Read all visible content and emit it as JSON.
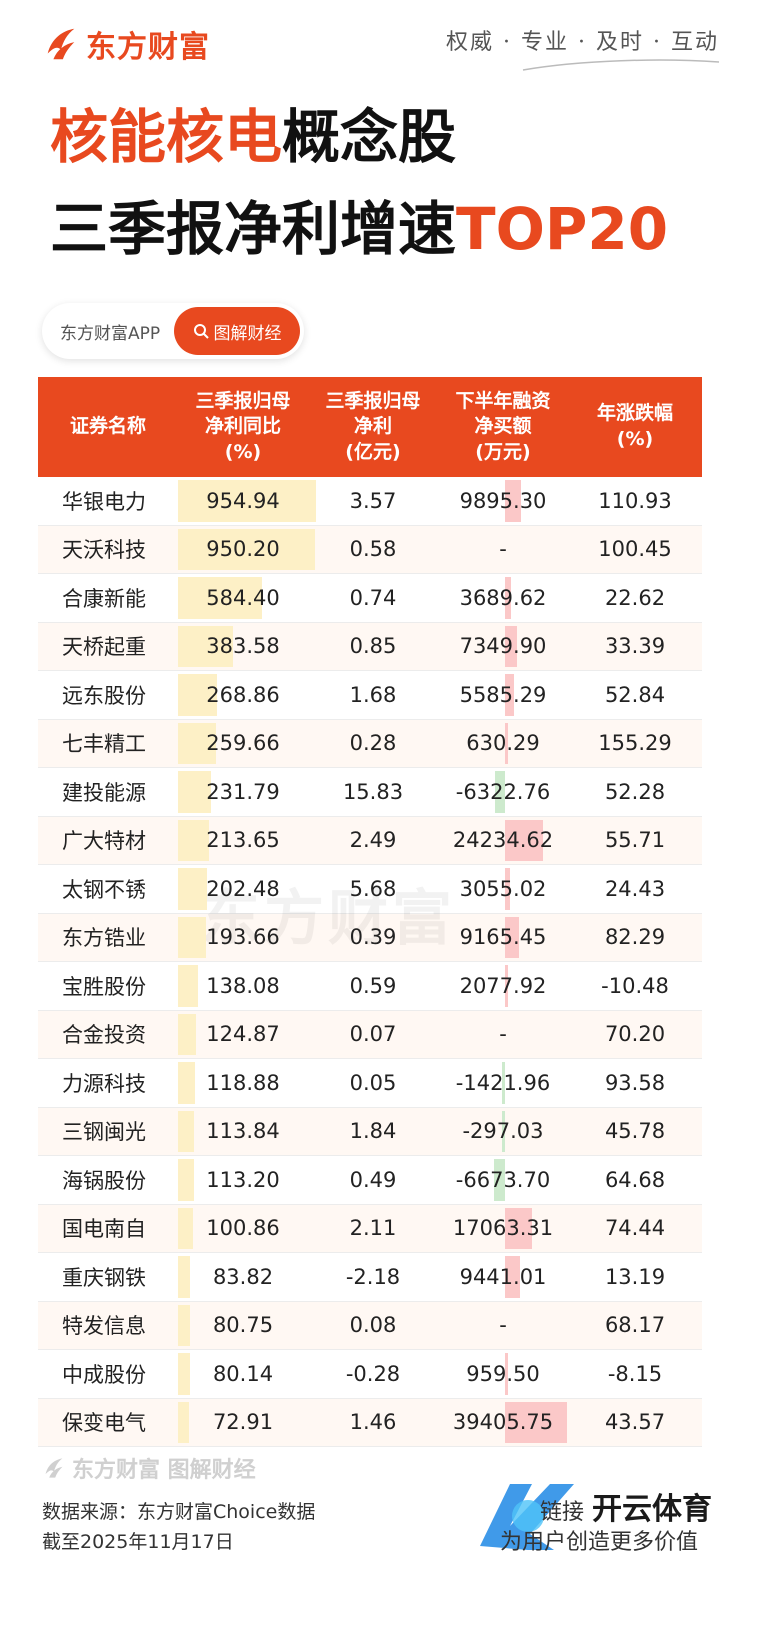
{
  "header": {
    "brand": "东方财富",
    "slogan": "权威 · 专业 · 及时 · 互动",
    "title_line1_highlight": "核能核电",
    "title_line1_rest": "概念股",
    "title_line2_main": "三季报净利增速",
    "title_line2_highlight": "TOP20"
  },
  "pill": {
    "left_label": "东方财富APP",
    "right_label": "图解财经"
  },
  "colors": {
    "accent": "#e8491f",
    "bar_yellow": "#fdf0c6",
    "bar_red": "#fbc8c8",
    "bar_green": "#cdeacd"
  },
  "icons": {
    "logo": "eastmoney-flame-icon",
    "search": "search-icon"
  },
  "chart_data": {
    "type": "table",
    "columns": [
      "证券名称",
      "三季报归母\n净利同比\n(%)",
      "三季报归母\n净利\n(亿元)",
      "下半年融资\n净买额\n(万元)",
      "年涨跌幅\n(%)"
    ],
    "rows": [
      {
        "name": "华银电力",
        "yoy": "954.94",
        "profit": "3.57",
        "margin": "9895.30",
        "change": "110.93"
      },
      {
        "name": "天沃科技",
        "yoy": "950.20",
        "profit": "0.58",
        "margin": "-",
        "change": "100.45"
      },
      {
        "name": "合康新能",
        "yoy": "584.40",
        "profit": "0.74",
        "margin": "3689.62",
        "change": "22.62"
      },
      {
        "name": "天桥起重",
        "yoy": "383.58",
        "profit": "0.85",
        "margin": "7349.90",
        "change": "33.39"
      },
      {
        "name": "远东股份",
        "yoy": "268.86",
        "profit": "1.68",
        "margin": "5585.29",
        "change": "52.84"
      },
      {
        "name": "七丰精工",
        "yoy": "259.66",
        "profit": "0.28",
        "margin": "630.29",
        "change": "155.29"
      },
      {
        "name": "建投能源",
        "yoy": "231.79",
        "profit": "15.83",
        "margin": "-6322.76",
        "change": "52.28"
      },
      {
        "name": "广大特材",
        "yoy": "213.65",
        "profit": "2.49",
        "margin": "24234.62",
        "change": "55.71"
      },
      {
        "name": "太钢不锈",
        "yoy": "202.48",
        "profit": "5.68",
        "margin": "3055.02",
        "change": "24.43"
      },
      {
        "name": "东方锆业",
        "yoy": "193.66",
        "profit": "0.39",
        "margin": "9165.45",
        "change": "82.29"
      },
      {
        "name": "宝胜股份",
        "yoy": "138.08",
        "profit": "0.59",
        "margin": "2077.92",
        "change": "-10.48"
      },
      {
        "name": "合金投资",
        "yoy": "124.87",
        "profit": "0.07",
        "margin": "-",
        "change": "70.20"
      },
      {
        "name": "力源科技",
        "yoy": "118.88",
        "profit": "0.05",
        "margin": "-1421.96",
        "change": "93.58"
      },
      {
        "name": "三钢闽光",
        "yoy": "113.84",
        "profit": "1.84",
        "margin": "-297.03",
        "change": "45.78"
      },
      {
        "name": "海锅股份",
        "yoy": "113.20",
        "profit": "0.49",
        "margin": "-6673.70",
        "change": "64.68"
      },
      {
        "name": "国电南自",
        "yoy": "100.86",
        "profit": "2.11",
        "margin": "17063.31",
        "change": "74.44"
      },
      {
        "name": "重庆钢铁",
        "yoy": "83.82",
        "profit": "-2.18",
        "margin": "9441.01",
        "change": "13.19"
      },
      {
        "name": "特发信息",
        "yoy": "80.75",
        "profit": "0.08",
        "margin": "-",
        "change": "68.17"
      },
      {
        "name": "中成股份",
        "yoy": "80.14",
        "profit": "-0.28",
        "margin": "959.50",
        "change": "-8.15"
      },
      {
        "name": "保变电气",
        "yoy": "72.91",
        "profit": "1.46",
        "margin": "39405.75",
        "change": "43.57"
      }
    ]
  },
  "watermark": "东方财富",
  "footer": {
    "brand": "东方财富 图解财经",
    "source": "数据来源：东方财富Choice数据",
    "date": "截至2025年11月17日"
  },
  "overlay": {
    "brand": "开云体育",
    "text1": "链接",
    "text2": "为用户创造更多价值"
  }
}
